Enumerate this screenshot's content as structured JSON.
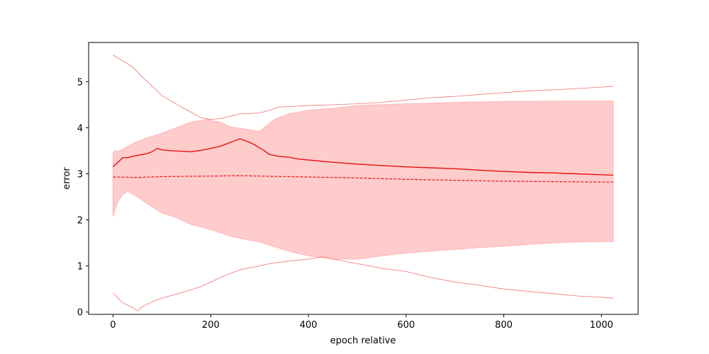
{
  "chart_data": {
    "type": "line",
    "title": "",
    "xlabel": "epoch relative",
    "ylabel": "error",
    "xlim": [
      -50,
      1075
    ],
    "ylim": [
      -0.05,
      5.85
    ],
    "xticks": [
      0,
      200,
      400,
      600,
      800,
      1000
    ],
    "yticks": [
      0,
      1,
      2,
      3,
      4,
      5
    ],
    "grid": false,
    "legend": "none",
    "colors": {
      "main": "#e81212",
      "band_fill": "#ffcccc",
      "band_edge": "#ffb3b3",
      "envelope": "#f07070"
    },
    "series": [
      {
        "role": "mean",
        "style": "solid",
        "x": [
          0,
          10,
          20,
          30,
          40,
          50,
          60,
          70,
          80,
          90,
          100,
          120,
          140,
          160,
          180,
          200,
          220,
          240,
          250,
          260,
          270,
          280,
          290,
          300,
          310,
          320,
          340,
          360,
          380,
          400,
          450,
          500,
          550,
          600,
          650,
          700,
          750,
          800,
          850,
          900,
          950,
          1000,
          1024
        ],
        "y": [
          3.15,
          3.25,
          3.35,
          3.35,
          3.38,
          3.4,
          3.42,
          3.44,
          3.48,
          3.55,
          3.52,
          3.5,
          3.49,
          3.48,
          3.51,
          3.55,
          3.6,
          3.68,
          3.72,
          3.76,
          3.72,
          3.68,
          3.63,
          3.56,
          3.5,
          3.42,
          3.38,
          3.36,
          3.32,
          3.3,
          3.25,
          3.21,
          3.18,
          3.15,
          3.13,
          3.11,
          3.08,
          3.05,
          3.03,
          3.02,
          3.0,
          2.98,
          2.97
        ]
      },
      {
        "role": "median",
        "style": "dashed",
        "x": [
          0,
          50,
          100,
          200,
          260,
          300,
          400,
          500,
          600,
          700,
          800,
          900,
          1000,
          1024
        ],
        "y": [
          2.93,
          2.92,
          2.94,
          2.95,
          2.96,
          2.95,
          2.93,
          2.91,
          2.88,
          2.86,
          2.84,
          2.83,
          2.82,
          2.82
        ]
      },
      {
        "role": "band",
        "x": [
          0,
          5,
          10,
          20,
          30,
          50,
          70,
          100,
          130,
          160,
          190,
          220,
          240,
          270,
          300,
          330,
          360,
          400,
          450,
          500,
          550,
          600,
          650,
          700,
          750,
          800,
          850,
          900,
          950,
          1000,
          1024
        ],
        "upper": [
          3.45,
          3.5,
          3.48,
          3.53,
          3.6,
          3.7,
          3.78,
          3.88,
          4.0,
          4.12,
          4.18,
          4.12,
          4.02,
          3.97,
          3.92,
          4.18,
          4.3,
          4.38,
          4.42,
          4.48,
          4.5,
          4.52,
          4.53,
          4.55,
          4.56,
          4.57,
          4.57,
          4.58,
          4.58,
          4.58,
          4.58
        ],
        "lower": [
          2.08,
          2.25,
          2.4,
          2.55,
          2.62,
          2.5,
          2.35,
          2.15,
          2.05,
          1.9,
          1.82,
          1.72,
          1.65,
          1.58,
          1.52,
          1.42,
          1.32,
          1.22,
          1.15,
          1.15,
          1.22,
          1.28,
          1.32,
          1.36,
          1.4,
          1.43,
          1.47,
          1.5,
          1.52,
          1.53,
          1.53
        ]
      },
      {
        "role": "max",
        "style": "thin",
        "x": [
          0,
          20,
          40,
          60,
          80,
          100,
          140,
          180,
          200,
          220,
          260,
          300,
          320,
          340,
          400,
          450,
          500,
          550,
          600,
          650,
          700,
          750,
          800,
          850,
          900,
          950,
          1000,
          1024
        ],
        "y": [
          5.58,
          5.45,
          5.32,
          5.1,
          4.9,
          4.7,
          4.45,
          4.22,
          4.18,
          4.2,
          4.3,
          4.32,
          4.38,
          4.45,
          4.48,
          4.5,
          4.52,
          4.55,
          4.6,
          4.65,
          4.68,
          4.72,
          4.76,
          4.8,
          4.82,
          4.85,
          4.88,
          4.9
        ]
      },
      {
        "role": "min",
        "style": "thin",
        "x": [
          0,
          10,
          20,
          30,
          40,
          50,
          60,
          80,
          100,
          140,
          180,
          220,
          260,
          300,
          320,
          340,
          400,
          430,
          450,
          500,
          550,
          600,
          650,
          700,
          750,
          800,
          850,
          900,
          950,
          1000,
          1024
        ],
        "y": [
          0.42,
          0.3,
          0.2,
          0.15,
          0.1,
          0.02,
          0.12,
          0.22,
          0.3,
          0.42,
          0.55,
          0.75,
          0.92,
          1.0,
          1.05,
          1.08,
          1.15,
          1.2,
          1.15,
          1.05,
          0.95,
          0.88,
          0.75,
          0.65,
          0.58,
          0.5,
          0.45,
          0.4,
          0.35,
          0.32,
          0.3
        ]
      }
    ]
  }
}
